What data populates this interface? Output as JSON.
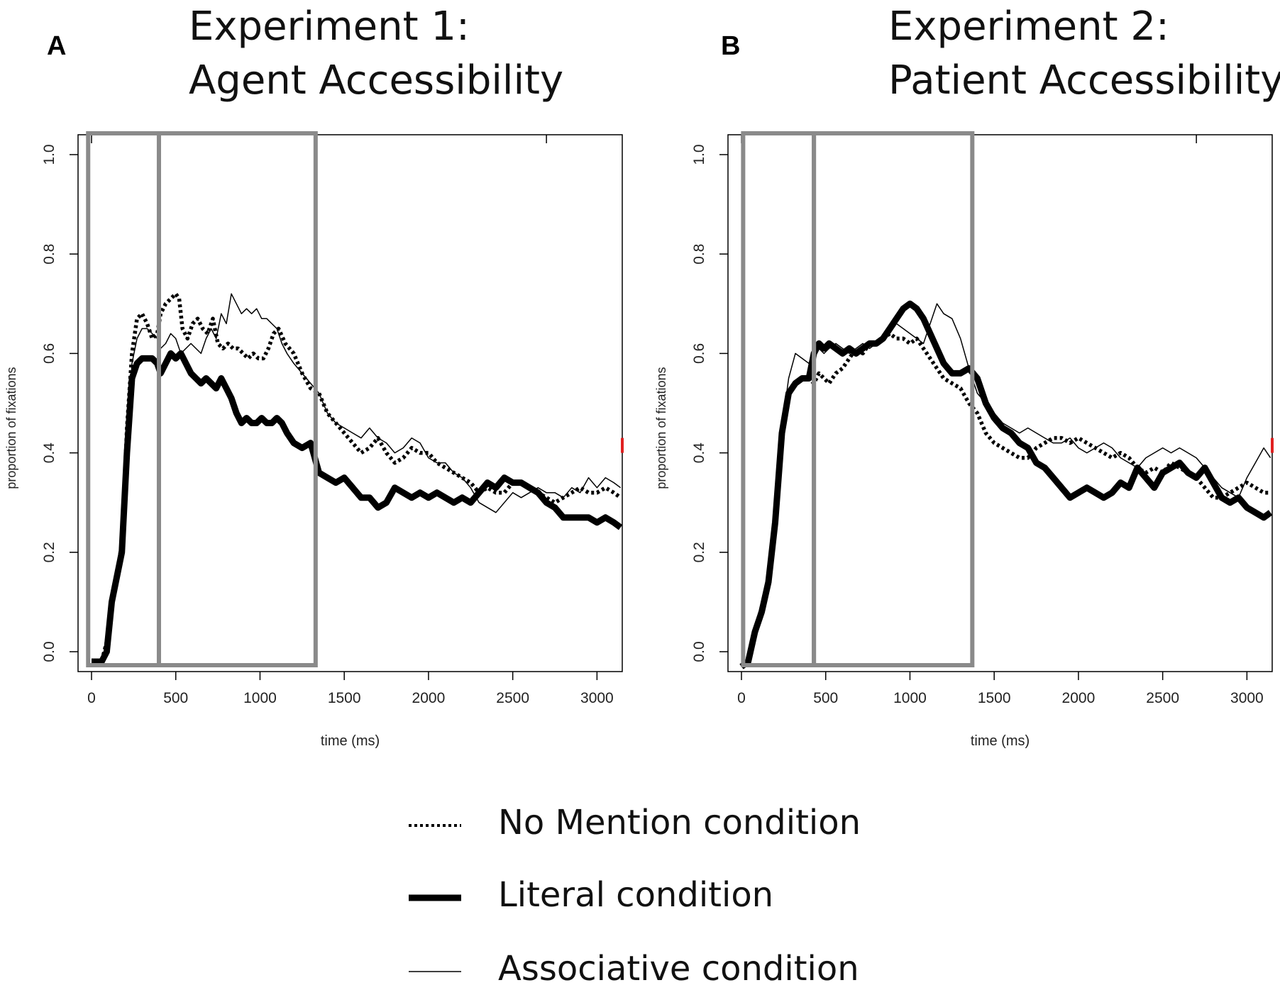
{
  "figure": {
    "panels": [
      {
        "letter": "A",
        "title_line1": "Experiment 1:",
        "title_line2": "Agent Accessibility"
      },
      {
        "letter": "B",
        "title_line1": "Experiment 2:",
        "title_line2": "Patient Accessibility"
      }
    ],
    "legend": [
      {
        "label": "No Mention condition",
        "style": "dotted"
      },
      {
        "label": "Literal condition",
        "style": "thick"
      },
      {
        "label": "Associative condition",
        "style": "thin"
      }
    ]
  },
  "chart_data": [
    {
      "type": "line",
      "title": "Experiment 1: Agent Accessibility",
      "xlabel": "time (ms)",
      "ylabel": "proportion of fixations",
      "xlim": [
        -80,
        3150
      ],
      "ylim": [
        -0.04,
        1.04
      ],
      "xticks": [
        0,
        500,
        1000,
        1500,
        2000,
        2500,
        3000
      ],
      "yticks": [
        0.0,
        0.2,
        0.4,
        0.6,
        0.8,
        1.0
      ],
      "windows_ms": [
        [
          -20,
          400
        ],
        [
          400,
          1330
        ]
      ],
      "series": [
        {
          "name": "No Mention condition",
          "style": "dotted",
          "x": [
            0,
            60,
            90,
            120,
            150,
            180,
            210,
            240,
            270,
            300,
            330,
            360,
            390,
            410,
            440,
            470,
            500,
            520,
            540,
            570,
            600,
            630,
            660,
            690,
            720,
            750,
            780,
            810,
            840,
            870,
            900,
            930,
            960,
            990,
            1020,
            1050,
            1080,
            1110,
            1150,
            1200,
            1250,
            1300,
            1350,
            1400,
            1450,
            1500,
            1550,
            1600,
            1650,
            1700,
            1750,
            1800,
            1850,
            1900,
            1950,
            2000,
            2050,
            2100,
            2150,
            2200,
            2250,
            2300,
            2350,
            2400,
            2450,
            2500,
            2550,
            2600,
            2650,
            2700,
            2750,
            2800,
            2850,
            2900,
            2950,
            3000,
            3050,
            3100,
            3140
          ],
          "y": [
            -0.02,
            -0.02,
            0.02,
            0.1,
            0.15,
            0.22,
            0.45,
            0.6,
            0.67,
            0.68,
            0.66,
            0.63,
            0.64,
            0.68,
            0.7,
            0.71,
            0.72,
            0.71,
            0.65,
            0.63,
            0.66,
            0.67,
            0.65,
            0.64,
            0.67,
            0.62,
            0.61,
            0.62,
            0.61,
            0.61,
            0.6,
            0.59,
            0.6,
            0.59,
            0.59,
            0.61,
            0.64,
            0.65,
            0.62,
            0.6,
            0.56,
            0.53,
            0.52,
            0.48,
            0.46,
            0.44,
            0.42,
            0.4,
            0.41,
            0.43,
            0.4,
            0.38,
            0.39,
            0.41,
            0.4,
            0.4,
            0.38,
            0.37,
            0.36,
            0.35,
            0.34,
            0.32,
            0.33,
            0.32,
            0.32,
            0.34,
            0.34,
            0.33,
            0.32,
            0.31,
            0.3,
            0.31,
            0.32,
            0.33,
            0.32,
            0.32,
            0.33,
            0.32,
            0.31
          ]
        },
        {
          "name": "Literal condition",
          "style": "thick",
          "x": [
            0,
            60,
            90,
            120,
            150,
            180,
            210,
            240,
            270,
            300,
            330,
            360,
            390,
            410,
            440,
            470,
            500,
            530,
            560,
            590,
            620,
            650,
            680,
            710,
            740,
            770,
            800,
            830,
            860,
            890,
            920,
            950,
            980,
            1010,
            1040,
            1070,
            1100,
            1130,
            1160,
            1200,
            1250,
            1300,
            1350,
            1400,
            1450,
            1500,
            1550,
            1600,
            1650,
            1700,
            1750,
            1800,
            1850,
            1900,
            1950,
            2000,
            2050,
            2100,
            2150,
            2200,
            2250,
            2300,
            2350,
            2400,
            2450,
            2500,
            2550,
            2600,
            2650,
            2700,
            2750,
            2800,
            2850,
            2900,
            2950,
            3000,
            3050,
            3100,
            3140
          ],
          "y": [
            -0.02,
            -0.02,
            0.0,
            0.1,
            0.15,
            0.2,
            0.4,
            0.55,
            0.58,
            0.59,
            0.59,
            0.59,
            0.58,
            0.56,
            0.58,
            0.6,
            0.59,
            0.6,
            0.58,
            0.56,
            0.55,
            0.54,
            0.55,
            0.54,
            0.53,
            0.55,
            0.53,
            0.51,
            0.48,
            0.46,
            0.47,
            0.46,
            0.46,
            0.47,
            0.46,
            0.46,
            0.47,
            0.46,
            0.44,
            0.42,
            0.41,
            0.42,
            0.36,
            0.35,
            0.34,
            0.35,
            0.33,
            0.31,
            0.31,
            0.29,
            0.3,
            0.33,
            0.32,
            0.31,
            0.32,
            0.31,
            0.32,
            0.31,
            0.3,
            0.31,
            0.3,
            0.32,
            0.34,
            0.33,
            0.35,
            0.34,
            0.34,
            0.33,
            0.32,
            0.3,
            0.29,
            0.27,
            0.27,
            0.27,
            0.27,
            0.26,
            0.27,
            0.26,
            0.25
          ]
        },
        {
          "name": "Associative condition",
          "style": "thin",
          "x": [
            0,
            60,
            90,
            120,
            150,
            180,
            210,
            240,
            270,
            300,
            330,
            360,
            390,
            410,
            440,
            470,
            500,
            530,
            560,
            590,
            620,
            650,
            680,
            710,
            740,
            770,
            800,
            830,
            860,
            890,
            920,
            950,
            980,
            1010,
            1040,
            1070,
            1100,
            1130,
            1160,
            1200,
            1250,
            1300,
            1350,
            1400,
            1450,
            1500,
            1550,
            1600,
            1650,
            1700,
            1750,
            1800,
            1850,
            1900,
            1950,
            2000,
            2050,
            2100,
            2150,
            2200,
            2250,
            2300,
            2350,
            2400,
            2450,
            2500,
            2550,
            2600,
            2650,
            2700,
            2750,
            2800,
            2850,
            2900,
            2950,
            3000,
            3050,
            3100,
            3140
          ],
          "y": [
            -0.02,
            -0.02,
            0.0,
            0.08,
            0.15,
            0.2,
            0.42,
            0.58,
            0.63,
            0.65,
            0.65,
            0.64,
            0.63,
            0.61,
            0.62,
            0.64,
            0.63,
            0.6,
            0.61,
            0.62,
            0.61,
            0.6,
            0.63,
            0.65,
            0.63,
            0.68,
            0.66,
            0.72,
            0.7,
            0.68,
            0.69,
            0.68,
            0.69,
            0.67,
            0.67,
            0.66,
            0.65,
            0.62,
            0.6,
            0.58,
            0.56,
            0.54,
            0.52,
            0.48,
            0.46,
            0.45,
            0.44,
            0.43,
            0.45,
            0.43,
            0.42,
            0.4,
            0.41,
            0.43,
            0.42,
            0.39,
            0.38,
            0.38,
            0.36,
            0.35,
            0.33,
            0.3,
            0.29,
            0.28,
            0.3,
            0.32,
            0.31,
            0.32,
            0.33,
            0.32,
            0.32,
            0.31,
            0.33,
            0.32,
            0.35,
            0.33,
            0.35,
            0.34,
            0.33
          ]
        }
      ]
    },
    {
      "type": "line",
      "title": "Experiment 2: Patient Accessibility",
      "xlabel": "time (ms)",
      "ylabel": "proportion of fixations",
      "xlim": [
        -80,
        3150
      ],
      "ylim": [
        -0.04,
        1.04
      ],
      "xticks": [
        0,
        500,
        1000,
        1500,
        2000,
        2500,
        3000
      ],
      "yticks": [
        0.0,
        0.2,
        0.4,
        0.6,
        0.8,
        1.0
      ],
      "windows_ms": [
        [
          10,
          430
        ],
        [
          430,
          1370
        ]
      ],
      "series": [
        {
          "name": "No Mention condition",
          "style": "dotted",
          "x": [
            0,
            40,
            80,
            120,
            160,
            200,
            240,
            280,
            320,
            360,
            400,
            430,
            460,
            490,
            520,
            560,
            600,
            640,
            680,
            720,
            760,
            800,
            840,
            880,
            920,
            960,
            1000,
            1040,
            1080,
            1120,
            1160,
            1200,
            1250,
            1300,
            1350,
            1400,
            1450,
            1500,
            1550,
            1600,
            1650,
            1700,
            1750,
            1800,
            1850,
            1900,
            1950,
            2000,
            2050,
            2100,
            2150,
            2200,
            2250,
            2300,
            2350,
            2400,
            2450,
            2500,
            2550,
            2600,
            2650,
            2700,
            2750,
            2800,
            2850,
            2900,
            2950,
            3000,
            3050,
            3100,
            3140
          ],
          "y": [
            -0.03,
            -0.02,
            0.04,
            0.09,
            0.15,
            0.28,
            0.45,
            0.52,
            0.54,
            0.55,
            0.55,
            0.54,
            0.56,
            0.55,
            0.54,
            0.56,
            0.57,
            0.59,
            0.61,
            0.6,
            0.62,
            0.62,
            0.63,
            0.64,
            0.63,
            0.63,
            0.62,
            0.63,
            0.61,
            0.59,
            0.57,
            0.55,
            0.54,
            0.53,
            0.5,
            0.48,
            0.44,
            0.42,
            0.41,
            0.4,
            0.39,
            0.39,
            0.41,
            0.42,
            0.43,
            0.43,
            0.42,
            0.43,
            0.42,
            0.41,
            0.4,
            0.39,
            0.4,
            0.39,
            0.37,
            0.36,
            0.37,
            0.36,
            0.38,
            0.37,
            0.36,
            0.35,
            0.33,
            0.31,
            0.31,
            0.32,
            0.33,
            0.34,
            0.33,
            0.32,
            0.32
          ]
        },
        {
          "name": "Literal condition",
          "style": "thick",
          "x": [
            0,
            40,
            80,
            120,
            160,
            200,
            240,
            280,
            320,
            360,
            400,
            430,
            460,
            490,
            520,
            560,
            600,
            640,
            680,
            720,
            760,
            800,
            840,
            880,
            920,
            960,
            1000,
            1040,
            1080,
            1120,
            1160,
            1200,
            1250,
            1300,
            1350,
            1400,
            1450,
            1500,
            1550,
            1600,
            1650,
            1700,
            1750,
            1800,
            1850,
            1900,
            1950,
            2000,
            2050,
            2100,
            2150,
            2200,
            2250,
            2300,
            2350,
            2400,
            2450,
            2500,
            2550,
            2600,
            2650,
            2700,
            2750,
            2800,
            2850,
            2900,
            2950,
            3000,
            3050,
            3100,
            3140
          ],
          "y": [
            -0.03,
            -0.02,
            0.04,
            0.08,
            0.14,
            0.26,
            0.44,
            0.52,
            0.54,
            0.55,
            0.55,
            0.6,
            0.62,
            0.61,
            0.62,
            0.61,
            0.6,
            0.61,
            0.6,
            0.61,
            0.62,
            0.62,
            0.63,
            0.65,
            0.67,
            0.69,
            0.7,
            0.69,
            0.67,
            0.64,
            0.61,
            0.58,
            0.56,
            0.56,
            0.57,
            0.55,
            0.5,
            0.47,
            0.45,
            0.44,
            0.42,
            0.41,
            0.38,
            0.37,
            0.35,
            0.33,
            0.31,
            0.32,
            0.33,
            0.32,
            0.31,
            0.32,
            0.34,
            0.33,
            0.37,
            0.35,
            0.33,
            0.36,
            0.37,
            0.38,
            0.36,
            0.35,
            0.37,
            0.34,
            0.31,
            0.3,
            0.31,
            0.29,
            0.28,
            0.27,
            0.28
          ]
        },
        {
          "name": "Associative condition",
          "style": "thin",
          "x": [
            0,
            40,
            80,
            120,
            160,
            200,
            240,
            280,
            320,
            360,
            400,
            430,
            460,
            490,
            520,
            560,
            600,
            640,
            680,
            720,
            760,
            800,
            840,
            880,
            920,
            960,
            1000,
            1040,
            1080,
            1120,
            1160,
            1200,
            1250,
            1300,
            1350,
            1400,
            1450,
            1500,
            1550,
            1600,
            1650,
            1700,
            1750,
            1800,
            1850,
            1900,
            1950,
            2000,
            2050,
            2100,
            2150,
            2200,
            2250,
            2300,
            2350,
            2400,
            2450,
            2500,
            2550,
            2600,
            2650,
            2700,
            2750,
            2800,
            2850,
            2900,
            2950,
            3000,
            3050,
            3100,
            3140
          ],
          "y": [
            -0.03,
            -0.02,
            0.05,
            0.1,
            0.13,
            0.25,
            0.45,
            0.55,
            0.6,
            0.59,
            0.58,
            0.6,
            0.61,
            0.6,
            0.61,
            0.62,
            0.61,
            0.6,
            0.61,
            0.62,
            0.61,
            0.62,
            0.63,
            0.64,
            0.66,
            0.65,
            0.64,
            0.63,
            0.62,
            0.66,
            0.7,
            0.68,
            0.67,
            0.63,
            0.57,
            0.52,
            0.5,
            0.48,
            0.46,
            0.45,
            0.44,
            0.45,
            0.44,
            0.43,
            0.42,
            0.42,
            0.43,
            0.41,
            0.4,
            0.41,
            0.42,
            0.41,
            0.39,
            0.38,
            0.37,
            0.39,
            0.4,
            0.41,
            0.4,
            0.41,
            0.4,
            0.39,
            0.37,
            0.35,
            0.33,
            0.32,
            0.31,
            0.35,
            0.38,
            0.41,
            0.39
          ]
        }
      ]
    }
  ]
}
